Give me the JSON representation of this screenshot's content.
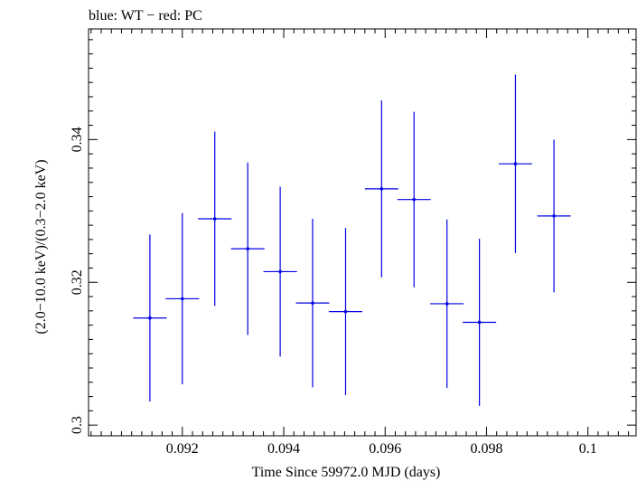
{
  "chart_data": {
    "type": "scatter",
    "title": "blue: WT − red: PC",
    "xlabel": "Time Since 59972.0 MJD (days)",
    "ylabel": "(2.0−10.0 keV)/(0.3−2.0 keV)",
    "xlim": [
      0.09015,
      0.10095
    ],
    "ylim": [
      0.2985,
      0.3555
    ],
    "x_ticks_major": [
      0.092,
      0.094,
      0.096,
      0.098,
      0.1
    ],
    "x_tick_labels": [
      "0.092",
      "0.094",
      "0.096",
      "0.098",
      "0.1"
    ],
    "x_minor_step": 0.0002,
    "y_ticks_major": [
      0.3,
      0.32,
      0.34
    ],
    "y_tick_labels": [
      "0.3",
      "0.32",
      "0.34"
    ],
    "y_minor_step": 0.002,
    "grid": false,
    "series": [
      {
        "color": "#0000e6",
        "points": [
          {
            "x": 0.09136,
            "xerr": 0.00033,
            "y": 0.315,
            "yerr": 0.0117
          },
          {
            "x": 0.092,
            "xerr": 0.00033,
            "y": 0.3177,
            "yerr": 0.012
          },
          {
            "x": 0.09264,
            "xerr": 0.00033,
            "y": 0.3289,
            "yerr": 0.0122
          },
          {
            "x": 0.09329,
            "xerr": 0.00033,
            "y": 0.3247,
            "yerr": 0.0121
          },
          {
            "x": 0.09393,
            "xerr": 0.00033,
            "y": 0.3215,
            "yerr": 0.0119
          },
          {
            "x": 0.09457,
            "xerr": 0.00033,
            "y": 0.3171,
            "yerr": 0.0118
          },
          {
            "x": 0.09522,
            "xerr": 0.00033,
            "y": 0.3159,
            "yerr": 0.0117
          },
          {
            "x": 0.09593,
            "xerr": 0.00033,
            "y": 0.3331,
            "yerr": 0.0124
          },
          {
            "x": 0.09657,
            "xerr": 0.00033,
            "y": 0.3316,
            "yerr": 0.0123
          },
          {
            "x": 0.09722,
            "xerr": 0.00033,
            "y": 0.317,
            "yerr": 0.0118
          },
          {
            "x": 0.09786,
            "xerr": 0.00033,
            "y": 0.3144,
            "yerr": 0.0117
          },
          {
            "x": 0.09857,
            "xerr": 0.00033,
            "y": 0.3366,
            "yerr": 0.0125
          },
          {
            "x": 0.09933,
            "xerr": 0.00033,
            "y": 0.3293,
            "yerr": 0.0107
          }
        ]
      }
    ]
  }
}
